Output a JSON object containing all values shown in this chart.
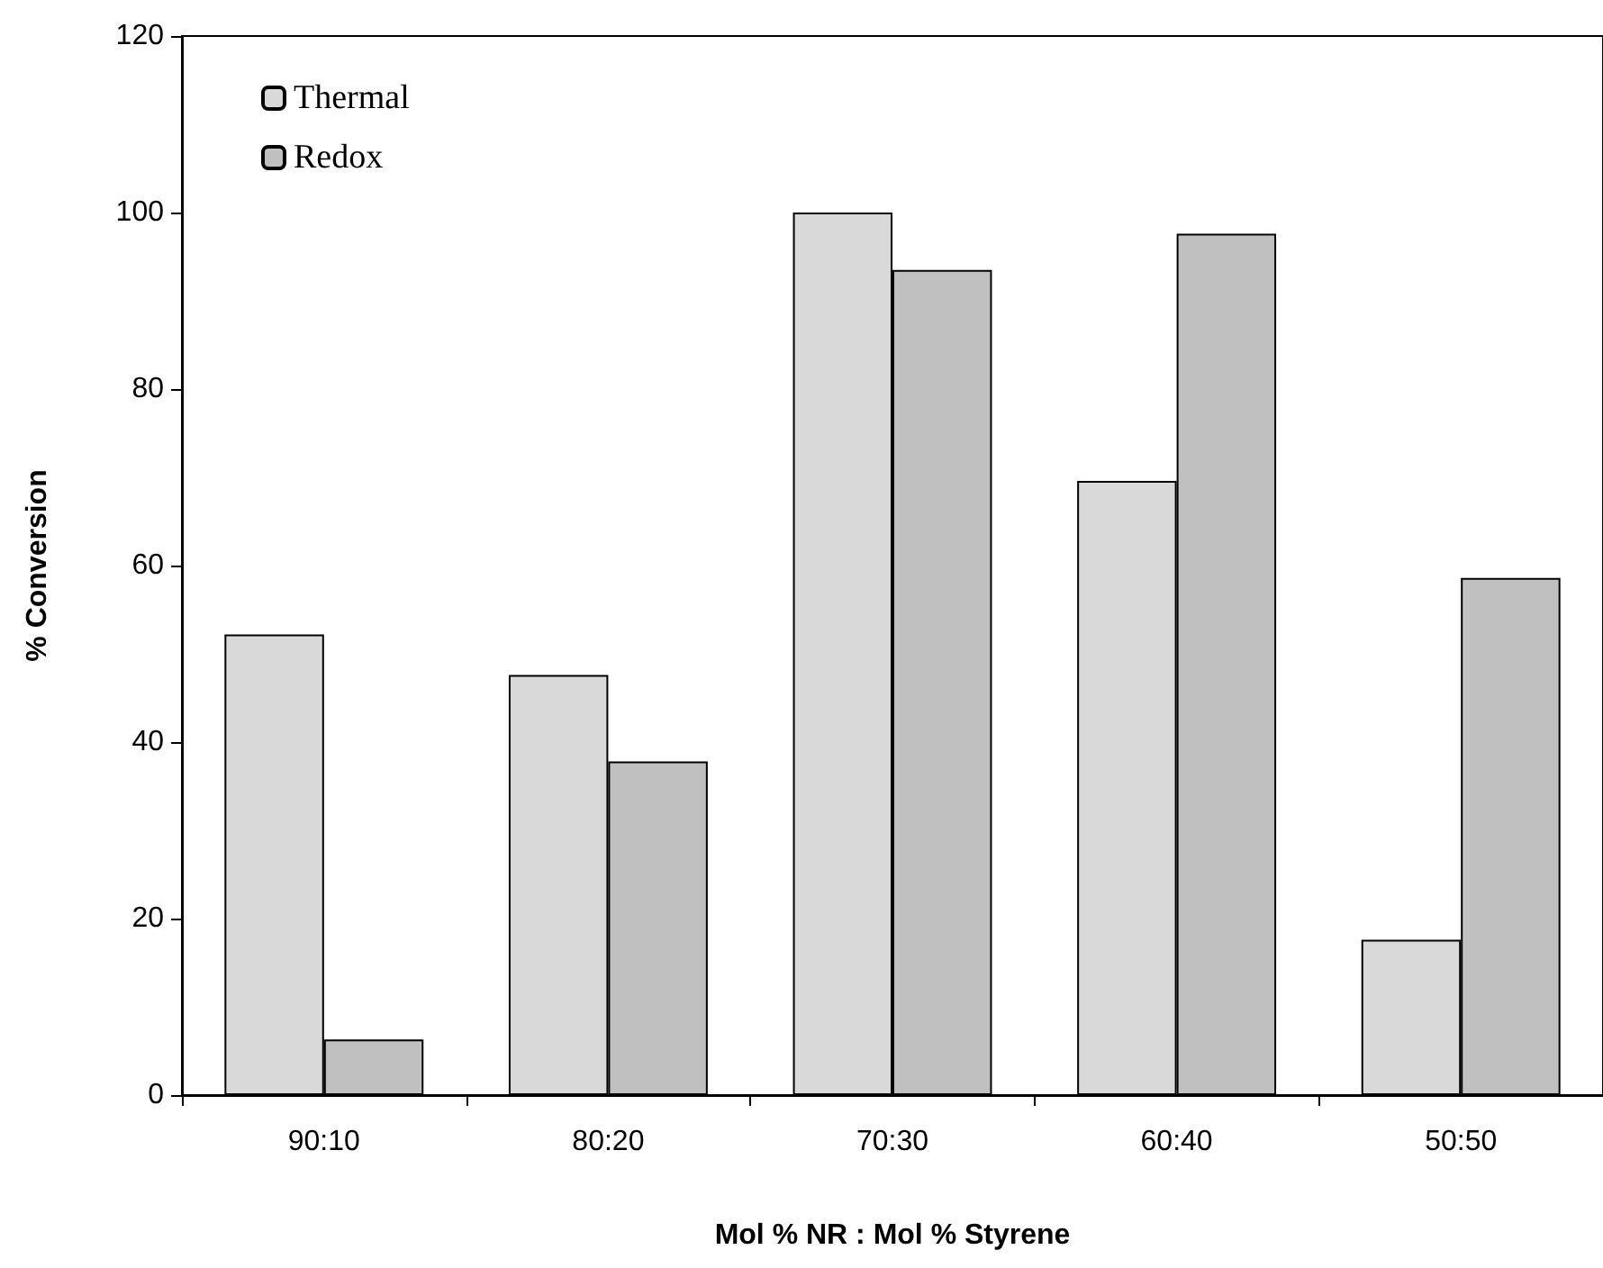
{
  "chart_data": {
    "type": "bar",
    "xlabel": "Mol % NR : Mol % Styrene",
    "ylabel": "% Conversion",
    "categories": [
      "90:10",
      "80:20",
      "70:30",
      "60:40",
      "50:50"
    ],
    "series": [
      {
        "name": "Thermal",
        "color": "#d9d9d9",
        "values": [
          52.2,
          47.6,
          100,
          69.6,
          17.6
        ]
      },
      {
        "name": "Redox",
        "color": "#c0c0c0",
        "values": [
          6.3,
          37.8,
          93.5,
          97.6,
          58.6
        ]
      }
    ],
    "ylim": [
      0,
      120
    ],
    "yticks": [
      0,
      20,
      40,
      60,
      80,
      100,
      120
    ],
    "grid": false,
    "legend": "top left"
  }
}
